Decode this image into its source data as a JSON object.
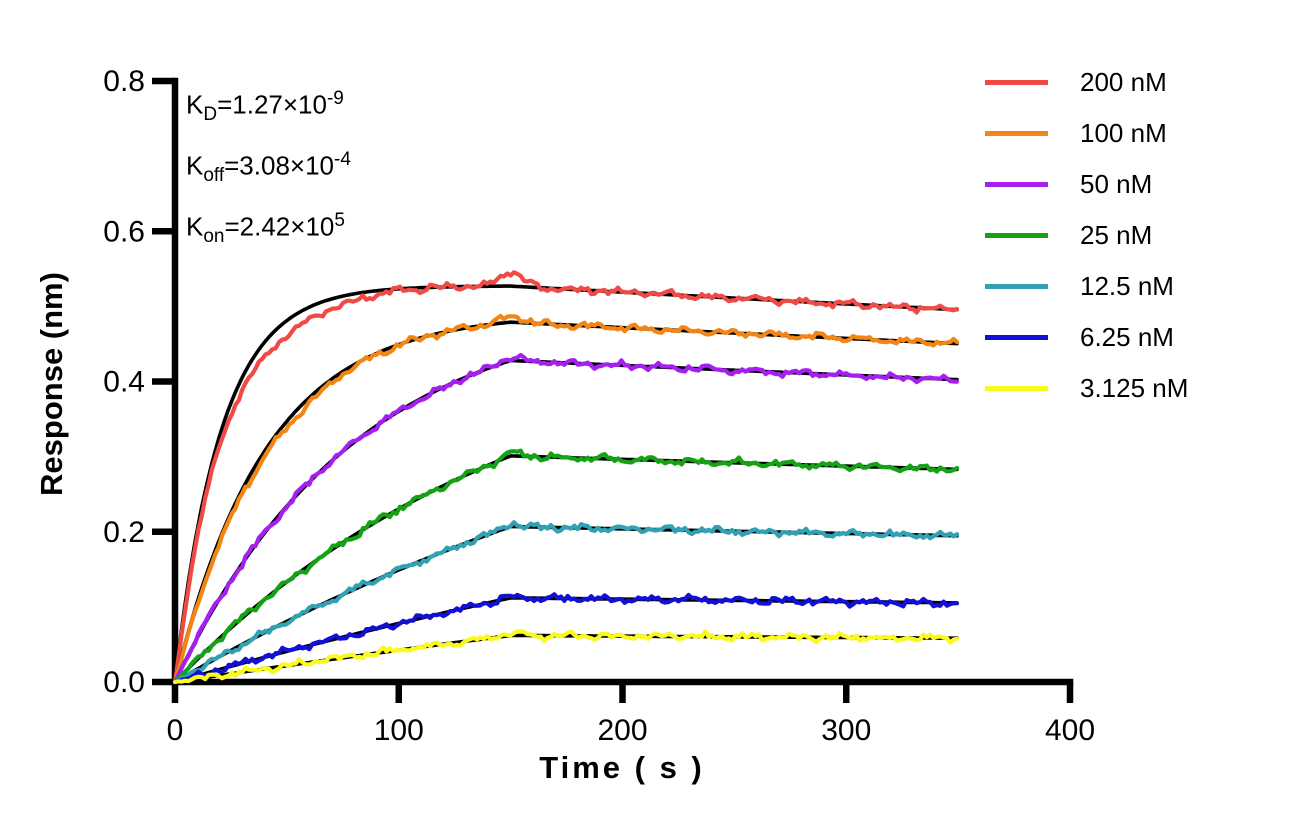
{
  "figure": {
    "background": "#ffffff",
    "axis_color": "#000000"
  },
  "chart_data": {
    "type": "line",
    "title": "",
    "xlabel": "Time ( s )",
    "ylabel": "Response (nm)",
    "xlim": [
      0,
      400
    ],
    "ylim": [
      0,
      0.8
    ],
    "xticks": [
      0,
      100,
      200,
      300,
      400
    ],
    "ytick_labels": [
      "0.0",
      "0.2",
      "0.4",
      "0.6",
      "0.8"
    ],
    "grid": false,
    "legend_position": "top-right",
    "association_end_s": 150,
    "trace_end_s": 350,
    "fit_line_color": "#000000",
    "kinetic_constants": {
      "KD_per_M": 1.27e-09,
      "koff_per_s": 0.000308,
      "kon_per_M_s": 242000.0
    },
    "annotations": [
      {
        "base": "K",
        "sub": "D",
        "body": "=1.27×10",
        "exp": "-9"
      },
      {
        "base": "K",
        "sub": "off",
        "body": "=3.08×10",
        "exp": "-4"
      },
      {
        "base": "K",
        "sub": "on",
        "body": "=2.42×10",
        "exp": "5"
      }
    ],
    "series": [
      {
        "label": "200 nM",
        "conc_nM": 200,
        "color": "#EF4A45",
        "peak_nm": 0.527,
        "end_nm": 0.496,
        "seed": 11,
        "early_dev_nm": 0.02,
        "spike_nm": 0.02
      },
      {
        "label": "100 nM",
        "conc_nM": 100,
        "color": "#F28514",
        "peak_nm": 0.479,
        "end_nm": 0.45,
        "seed": 22,
        "early_dev_nm": 0.008,
        "spike_nm": 0.008
      },
      {
        "label": "50 nM",
        "conc_nM": 50,
        "color": "#A520F0",
        "peak_nm": 0.428,
        "end_nm": 0.403,
        "seed": 33,
        "early_dev_nm": 0.0,
        "spike_nm": 0.005
      },
      {
        "label": "25 nM",
        "conc_nM": 25,
        "color": "#15A315",
        "peak_nm": 0.301,
        "end_nm": 0.285,
        "seed": 44,
        "early_dev_nm": 0.0,
        "spike_nm": 0.004
      },
      {
        "label": "12.5 nM",
        "conc_nM": 12.5,
        "color": "#30A2B4",
        "peak_nm": 0.207,
        "end_nm": 0.195,
        "seed": 55,
        "early_dev_nm": 0.0,
        "spike_nm": 0.004
      },
      {
        "label": "6.25 nM",
        "conc_nM": 6.25,
        "color": "#1111D6",
        "peak_nm": 0.112,
        "end_nm": 0.106,
        "seed": 66,
        "early_dev_nm": 0.0,
        "spike_nm": 0.002
      },
      {
        "label": "3.125 nM",
        "conc_nM": 3.125,
        "color": "#FAFA1E",
        "peak_nm": 0.062,
        "end_nm": 0.058,
        "seed": 77,
        "early_dev_nm": 0.0,
        "spike_nm": 0.002
      }
    ]
  }
}
